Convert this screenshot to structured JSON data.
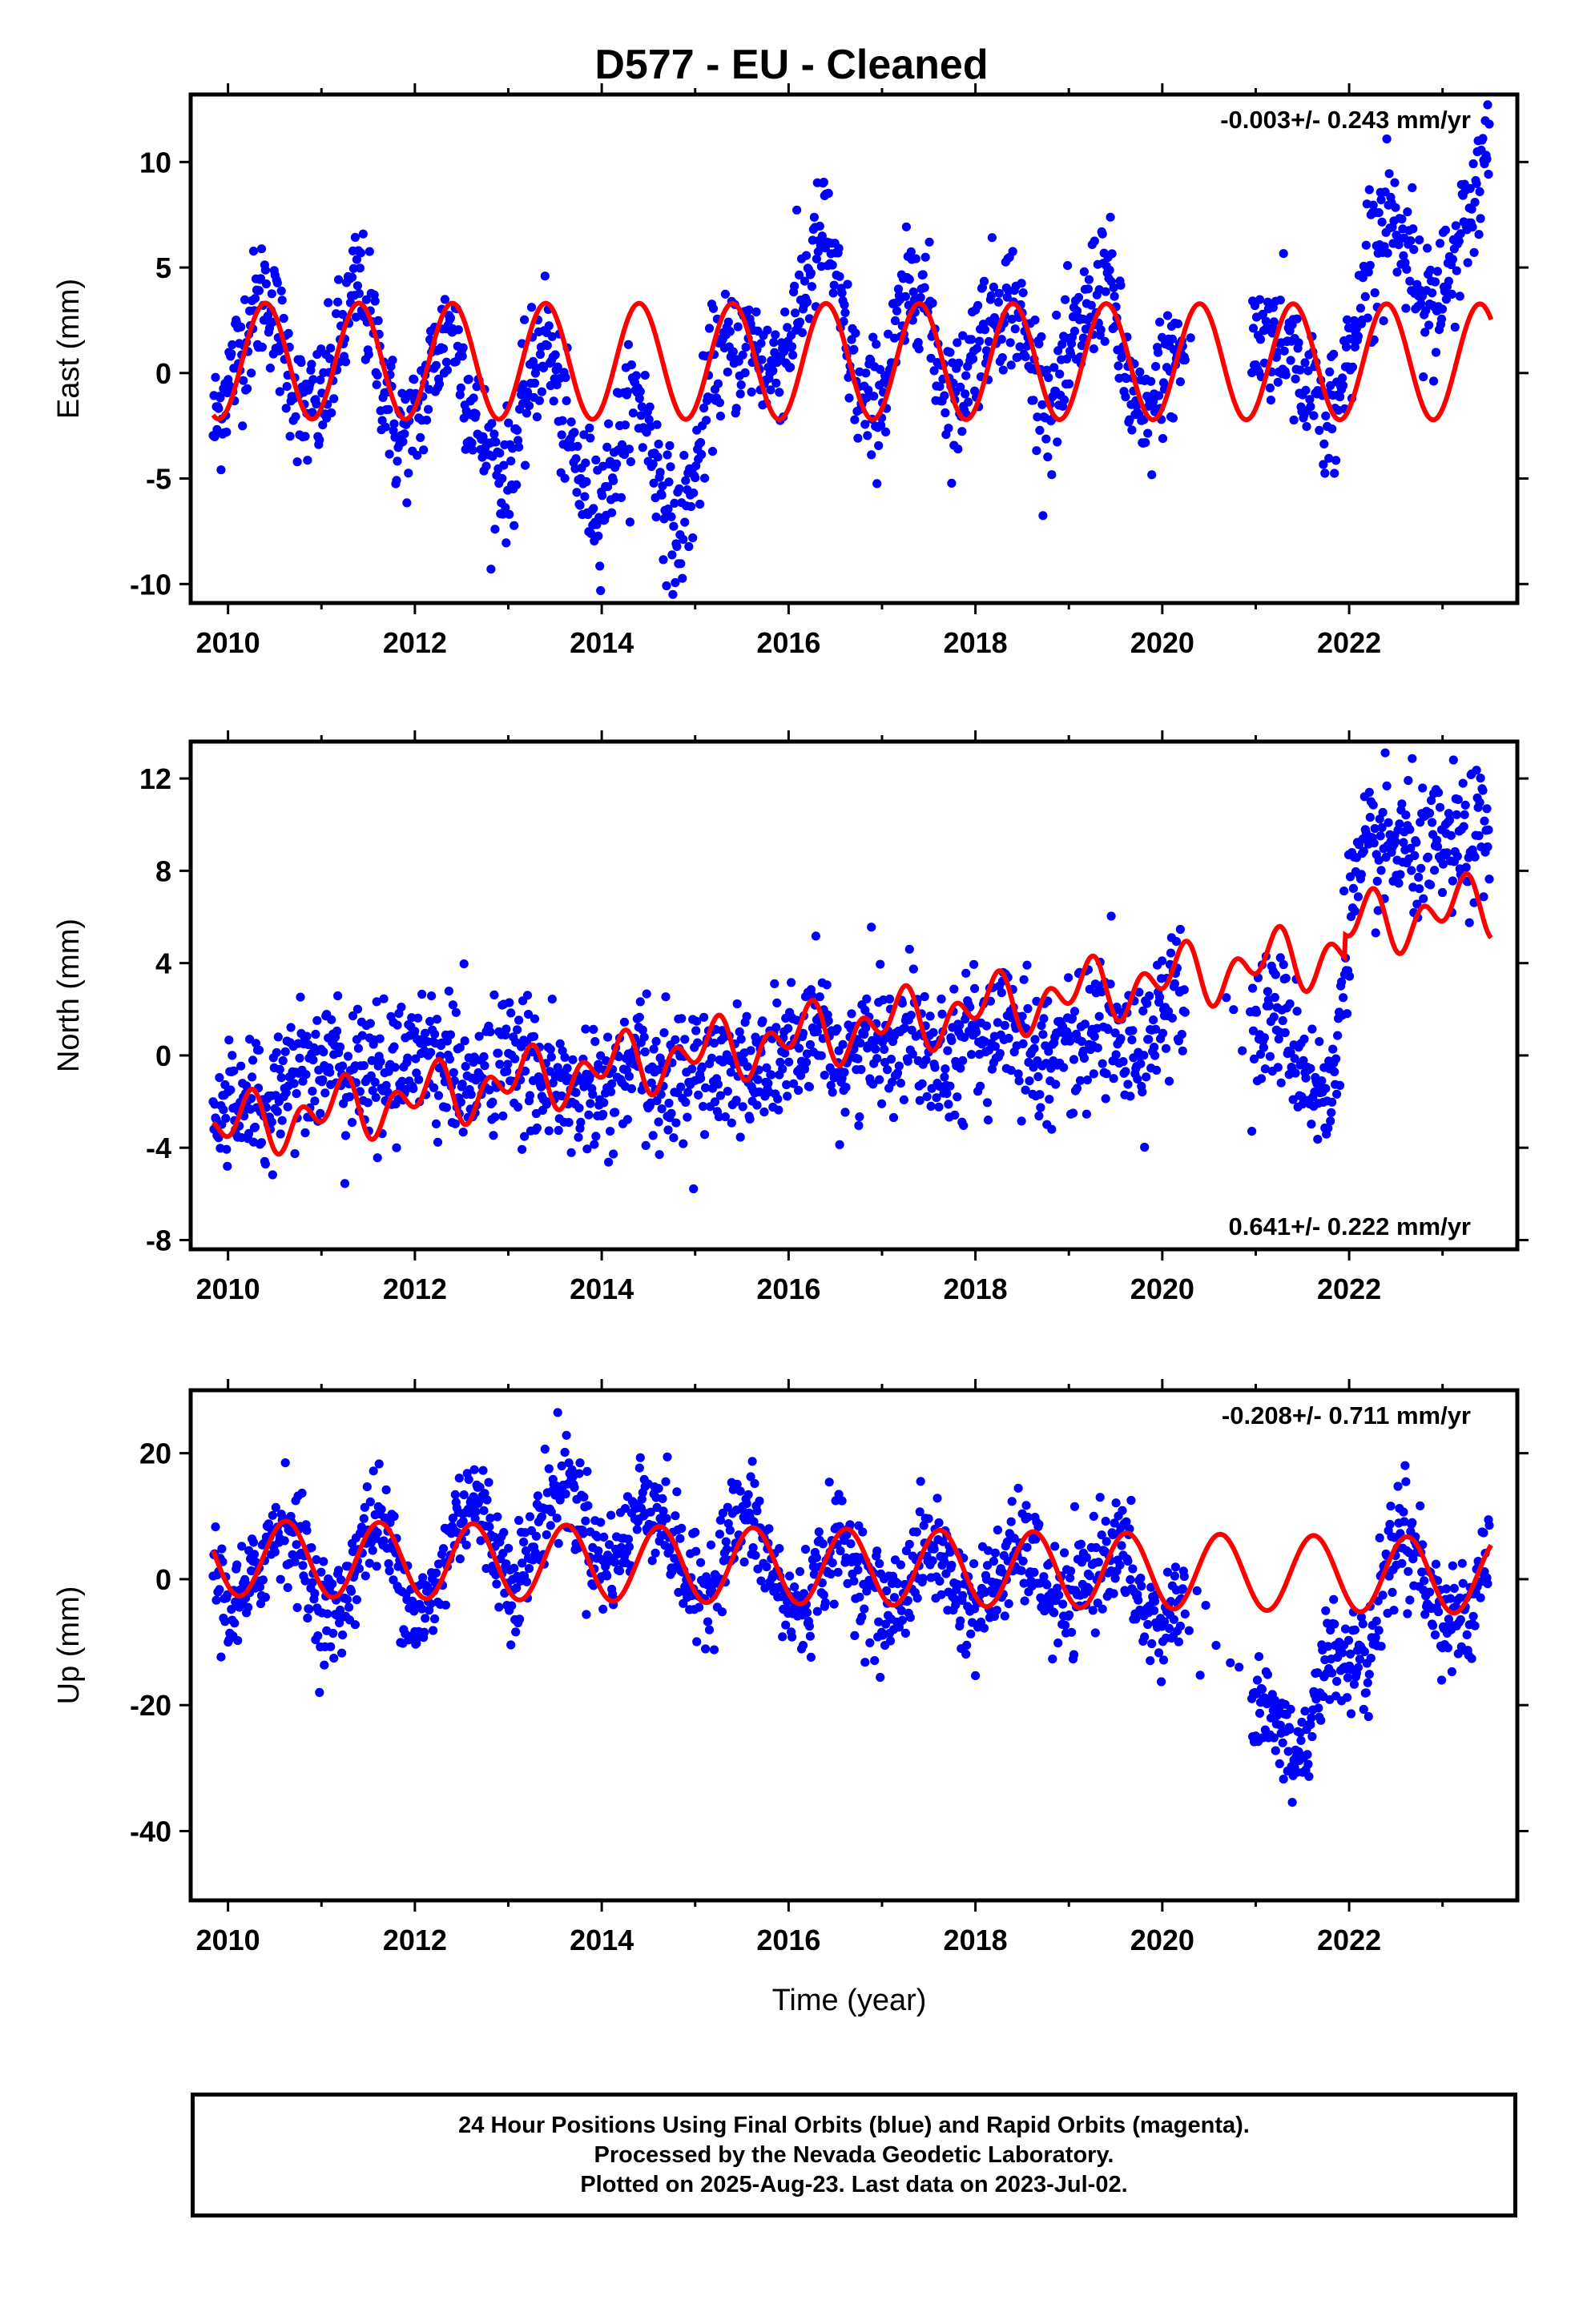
{
  "title": "D577  - EU - Cleaned",
  "xlabel": "Time (year)",
  "footer": {
    "line1": "24 Hour Positions Using Final Orbits (blue) and Rapid Orbits (magenta).",
    "line2": "Processed by the Nevada Geodetic Laboratory.",
    "line3": "Plotted on 2025-Aug-23. Last data on 2023-Jul-02."
  },
  "colors": {
    "points": "#0000ff",
    "model": "#ff0000",
    "frame": "#000000"
  },
  "chart_data": [
    {
      "type": "scatter",
      "panel": "east",
      "ylabel": "East (mm)",
      "rate_label": "-0.003+/- 0.243 mm/yr",
      "rate_position": "top-right",
      "xlim": [
        2009.6,
        2023.8
      ],
      "ylim": [
        -10.9,
        13.2
      ],
      "xticks": [
        2010,
        2012,
        2014,
        2016,
        2018,
        2020,
        2022
      ],
      "yticks": [
        -10,
        -5,
        0,
        5,
        10
      ],
      "series": [
        {
          "kind": "points",
          "x": [
            2009.85,
            2010.0,
            2010.2,
            2010.4,
            2010.6,
            2010.8,
            2011.0,
            2011.2,
            2011.4,
            2011.6,
            2011.8,
            2012.0,
            2012.2,
            2012.4,
            2012.6,
            2012.8,
            2013.0,
            2013.2,
            2013.4,
            2013.6,
            2013.8,
            2014.0,
            2014.2,
            2014.4,
            2014.6,
            2014.8,
            2015.0,
            2015.2,
            2015.4,
            2015.6,
            2015.8,
            2016.0,
            2016.2,
            2016.4,
            2016.6,
            2016.8,
            2017.0,
            2017.2,
            2017.4,
            2017.6,
            2017.8,
            2018.0,
            2018.2,
            2018.4,
            2018.6,
            2018.8,
            2019.0,
            2019.2,
            2019.4,
            2019.6,
            2019.8,
            2020.0,
            2020.2,
            2021.0,
            2021.2,
            2021.4,
            2021.6,
            2021.8,
            2022.0,
            2022.2,
            2022.4,
            2022.6,
            2022.8,
            2023.0,
            2023.2,
            2023.4,
            2023.5
          ],
          "y": [
            -2.5,
            -0.5,
            2.0,
            4.0,
            1.0,
            -2.0,
            -1.5,
            1.5,
            4.5,
            1.0,
            -3.0,
            -2.5,
            0.5,
            2.5,
            -1.5,
            -4.0,
            -5.0,
            -1.0,
            2.0,
            -2.5,
            -5.5,
            -6.0,
            -3.0,
            -1.0,
            -4.5,
            -8.0,
            -5.0,
            0.5,
            1.0,
            1.5,
            0.0,
            1.5,
            4.5,
            7.0,
            2.0,
            -2.0,
            -1.0,
            2.5,
            5.0,
            0.5,
            -1.5,
            1.5,
            3.0,
            3.5,
            0.5,
            -1.5,
            0.5,
            3.0,
            5.0,
            0.0,
            -3.0,
            0.0,
            1.0,
            1.5,
            2.0,
            1.0,
            -1.0,
            -2.5,
            1.0,
            5.0,
            8.0,
            6.0,
            4.0,
            3.5,
            6.0,
            9.5,
            11.0
          ]
        },
        {
          "kind": "model",
          "model": {
            "offset": 0.55,
            "rate": -0.003,
            "amplitude": 2.75,
            "phase_year": 2010.4
          }
        }
      ]
    },
    {
      "type": "scatter",
      "panel": "north",
      "ylabel": "North (mm)",
      "rate_label": "0.641+/- 0.222 mm/yr",
      "rate_position": "bottom-right",
      "xlim": [
        2009.6,
        2023.8
      ],
      "ylim": [
        -8.4,
        13.6
      ],
      "xticks": [
        2010,
        2012,
        2014,
        2016,
        2018,
        2020,
        2022
      ],
      "yticks": [
        -8,
        -4,
        0,
        4,
        8,
        12
      ],
      "series": [
        {
          "kind": "points",
          "x": [
            2009.85,
            2010.0,
            2010.2,
            2010.4,
            2010.6,
            2010.8,
            2011.0,
            2011.2,
            2011.4,
            2011.6,
            2011.8,
            2012.0,
            2012.2,
            2012.4,
            2012.6,
            2012.8,
            2013.0,
            2013.2,
            2013.4,
            2013.6,
            2013.8,
            2014.0,
            2014.2,
            2014.4,
            2014.6,
            2014.8,
            2015.0,
            2015.2,
            2015.4,
            2015.6,
            2015.8,
            2016.0,
            2016.2,
            2016.4,
            2016.6,
            2016.8,
            2017.0,
            2017.2,
            2017.4,
            2017.6,
            2017.8,
            2018.0,
            2018.2,
            2018.4,
            2018.6,
            2018.8,
            2019.0,
            2019.2,
            2019.4,
            2019.6,
            2019.8,
            2020.0,
            2020.2,
            2021.0,
            2021.2,
            2021.4,
            2021.6,
            2021.8,
            2022.0,
            2022.2,
            2022.4,
            2022.6,
            2022.8,
            2023.0,
            2023.2,
            2023.4,
            2023.5
          ],
          "y": [
            -3.5,
            -2.0,
            -1.5,
            -2.5,
            -1.0,
            -0.5,
            0.0,
            -1.0,
            -0.5,
            -1.0,
            -0.5,
            0.5,
            0.0,
            -0.5,
            -1.5,
            -0.5,
            0.0,
            -1.0,
            -0.5,
            -2.0,
            -1.5,
            -2.0,
            -1.0,
            -0.5,
            -1.5,
            -0.5,
            -1.0,
            -0.5,
            0.0,
            -1.0,
            -0.5,
            0.5,
            0.0,
            1.0,
            -0.5,
            0.5,
            1.0,
            0.5,
            1.5,
            0.0,
            0.5,
            1.0,
            0.5,
            1.5,
            0.5,
            0.0,
            0.5,
            1.0,
            1.5,
            0.0,
            0.5,
            2.0,
            2.5,
            1.0,
            2.0,
            0.5,
            -1.0,
            -2.5,
            6.5,
            8.5,
            9.0,
            9.0,
            8.5,
            9.0,
            9.0,
            9.5,
            9.5
          ]
        },
        {
          "kind": "model",
          "model": {
            "rate": 0.641,
            "offset_at_2016": 0.72,
            "amplitude": 0.9,
            "phase_year": 2010.15,
            "step_2021_95": 1.0
          }
        }
      ]
    },
    {
      "type": "scatter",
      "panel": "up",
      "ylabel": "Up (mm)",
      "rate_label": "-0.208+/- 0.711 mm/yr",
      "rate_position": "top-right",
      "xlim": [
        2009.6,
        2023.8
      ],
      "ylim": [
        -51.0,
        30.0
      ],
      "xticks": [
        2010,
        2012,
        2014,
        2016,
        2018,
        2020,
        2022
      ],
      "yticks": [
        -40,
        -20,
        0,
        20
      ],
      "series": [
        {
          "kind": "points",
          "x": [
            2009.85,
            2010.0,
            2010.2,
            2010.4,
            2010.6,
            2010.8,
            2011.0,
            2011.2,
            2011.4,
            2011.6,
            2011.8,
            2012.0,
            2012.2,
            2012.4,
            2012.6,
            2012.8,
            2013.0,
            2013.2,
            2013.4,
            2013.6,
            2013.8,
            2014.0,
            2014.2,
            2014.4,
            2014.6,
            2014.8,
            2015.0,
            2015.2,
            2015.4,
            2015.6,
            2015.8,
            2016.0,
            2016.2,
            2016.4,
            2016.6,
            2016.8,
            2017.0,
            2017.2,
            2017.4,
            2017.6,
            2017.8,
            2018.0,
            2018.2,
            2018.4,
            2018.6,
            2018.8,
            2019.0,
            2019.2,
            2019.4,
            2019.6,
            2019.8,
            2020.0,
            2020.2,
            2021.0,
            2021.2,
            2021.4,
            2021.6,
            2021.8,
            2022.0,
            2022.2,
            2022.4,
            2022.6,
            2022.8,
            2023.0,
            2023.2,
            2023.4,
            2023.5
          ],
          "y": [
            2.0,
            -5.0,
            -3.0,
            5.0,
            10.0,
            4.0,
            -5.0,
            -6.0,
            5.0,
            10.0,
            3.0,
            -6.0,
            -4.0,
            8.0,
            14.0,
            8.0,
            0.0,
            2.0,
            12.0,
            16.0,
            10.0,
            2.0,
            4.0,
            12.0,
            12.0,
            4.0,
            -3.0,
            0.0,
            8.0,
            10.0,
            2.0,
            -5.0,
            -4.0,
            4.0,
            6.0,
            0.0,
            -6.0,
            -3.0,
            4.0,
            5.0,
            -2.0,
            -5.0,
            -1.0,
            4.0,
            4.0,
            -3.0,
            -5.0,
            0.0,
            5.0,
            4.0,
            -6.0,
            -8.0,
            -2.0,
            -18.0,
            -22.0,
            -28.0,
            -24.0,
            -10.0,
            -12.0,
            -14.0,
            2.0,
            10.0,
            0.0,
            -6.0,
            -6.0,
            -3.0,
            4.0
          ]
        },
        {
          "kind": "model",
          "model": {
            "offset": 2.1,
            "rate": -0.208,
            "amplitude": 6.0,
            "phase_year": 2010.62
          }
        }
      ]
    }
  ]
}
